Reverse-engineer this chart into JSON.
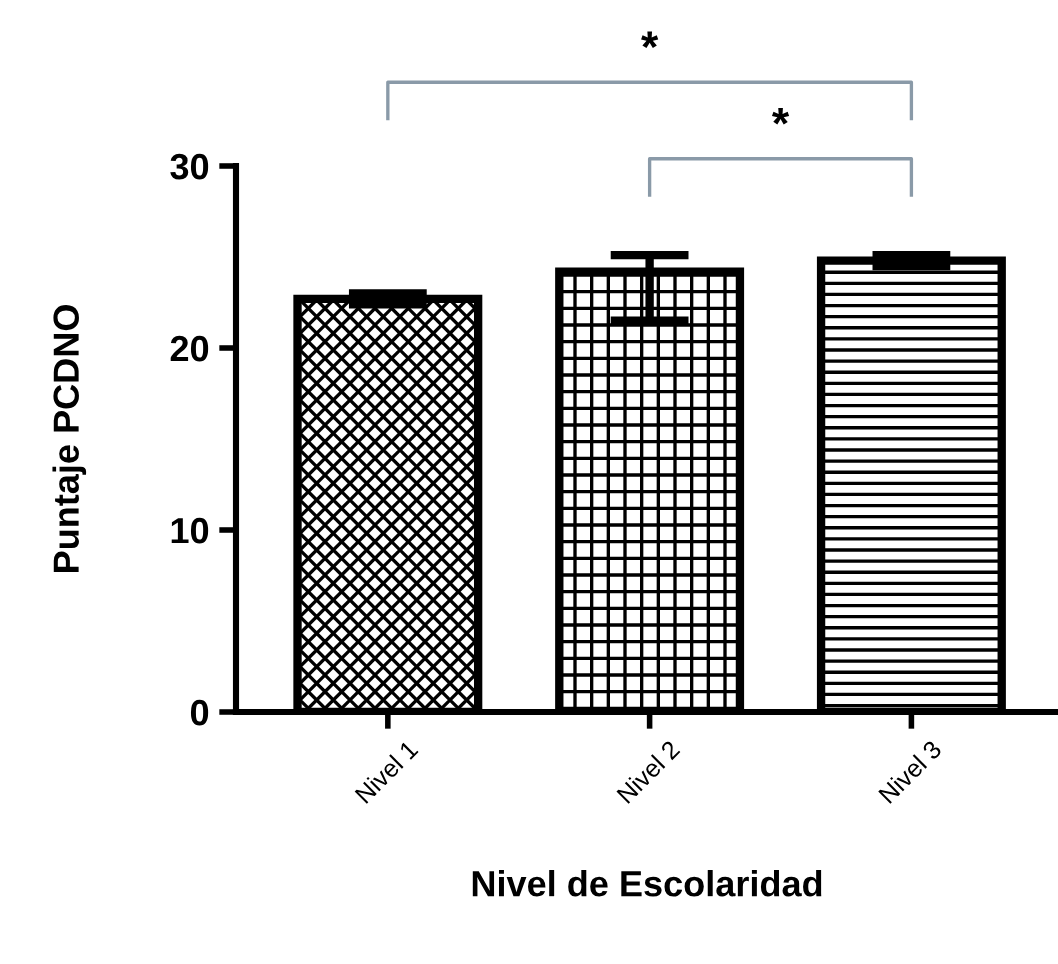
{
  "chart_data": {
    "type": "bar",
    "xlabel": "Nivel de Escolaridad",
    "ylabel": "Puntaje PCDNO",
    "categories": [
      "Nivel 1",
      "Nivel 2",
      "Nivel 3"
    ],
    "values": [
      22.7,
      24.2,
      24.8
    ],
    "errors": [
      0.3,
      [
        21.5,
        25.1
      ],
      0.3
    ],
    "ylim": [
      0,
      30
    ],
    "yticks": [
      0,
      10,
      20,
      30
    ],
    "grid": false,
    "legend": false,
    "annotations": [
      "*",
      "*"
    ]
  }
}
